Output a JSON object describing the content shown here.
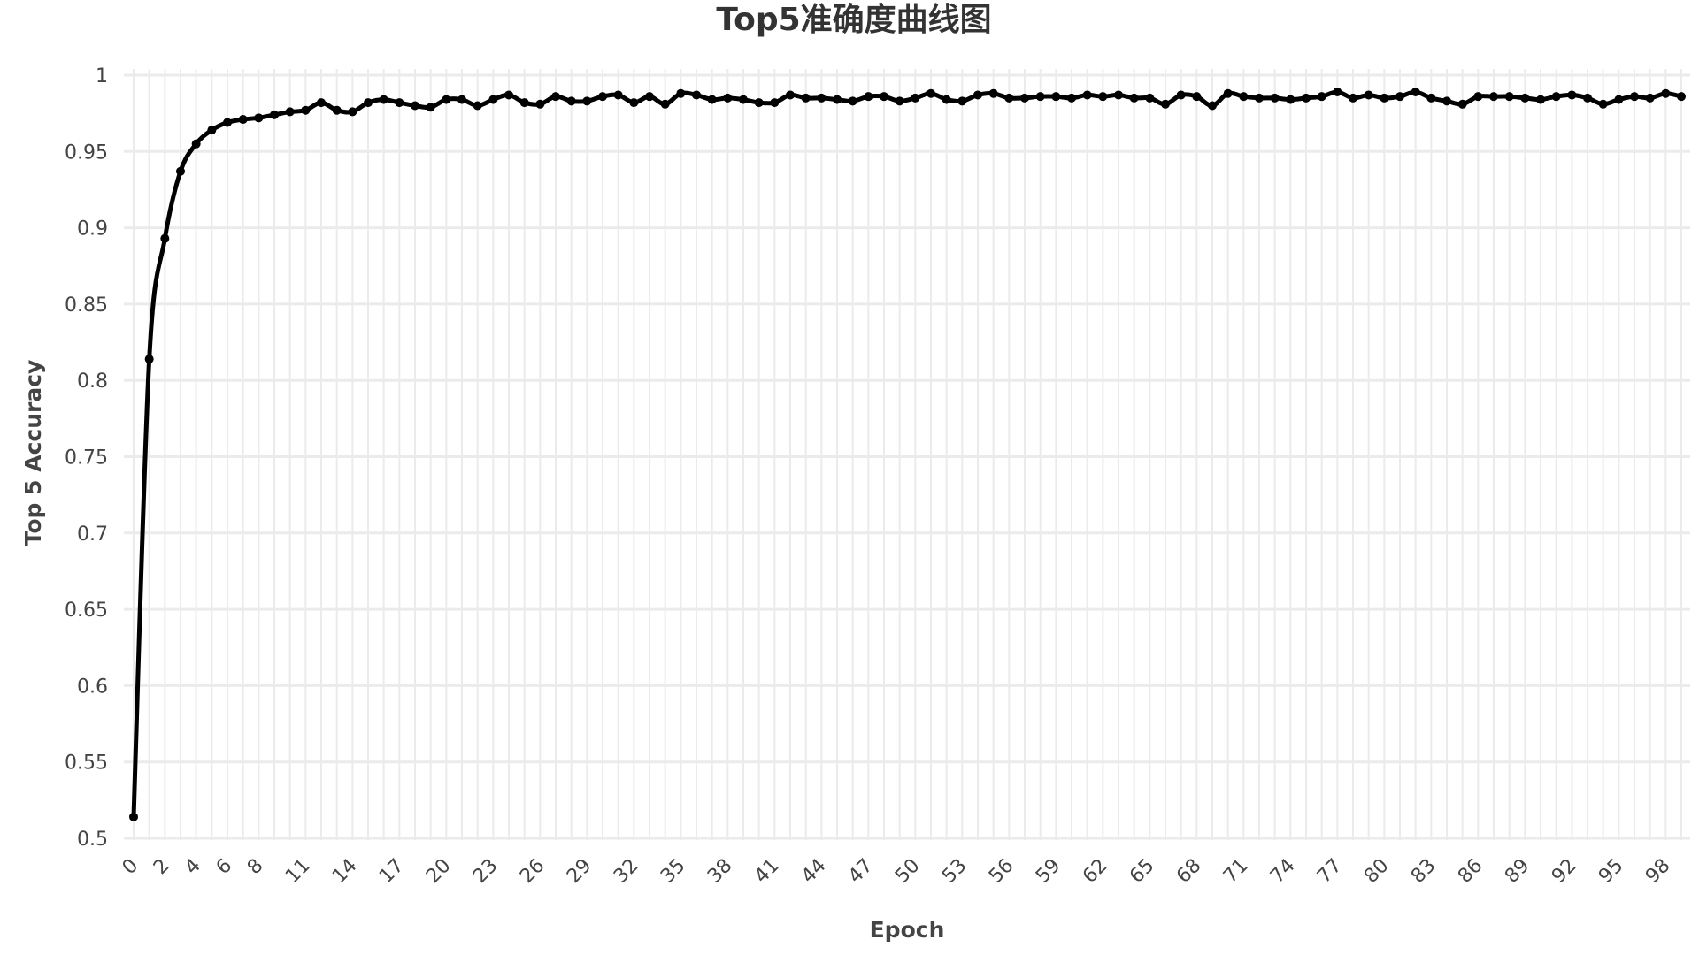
{
  "chart_data": {
    "type": "line",
    "title": "Top5准确度曲线图",
    "xlabel": "Epoch",
    "ylabel": "Top 5 Accuracy",
    "xlim": [
      0,
      99
    ],
    "ylim": [
      0.5,
      1
    ],
    "yticks": [
      0.5,
      0.55,
      0.6,
      0.65,
      0.7,
      0.75,
      0.8,
      0.85,
      0.9,
      0.95,
      1
    ],
    "ytick_labels": [
      "0.5",
      "0.55",
      "0.6",
      "0.65",
      "0.7",
      "0.75",
      "0.8",
      "0.85",
      "0.9",
      "0.95",
      "1"
    ],
    "xtick_labels": [
      {
        "x": 0,
        "label": "0"
      },
      {
        "x": 2,
        "label": "2"
      },
      {
        "x": 4,
        "label": "4"
      },
      {
        "x": 6,
        "label": "6"
      },
      {
        "x": 8,
        "label": "8"
      },
      {
        "x": 11,
        "label": "11"
      },
      {
        "x": 14,
        "label": "14"
      },
      {
        "x": 17,
        "label": "17"
      },
      {
        "x": 20,
        "label": "20"
      },
      {
        "x": 23,
        "label": "23"
      },
      {
        "x": 26,
        "label": "26"
      },
      {
        "x": 29,
        "label": "29"
      },
      {
        "x": 32,
        "label": "32"
      },
      {
        "x": 35,
        "label": "35"
      },
      {
        "x": 38,
        "label": "38"
      },
      {
        "x": 41,
        "label": "41"
      },
      {
        "x": 44,
        "label": "44"
      },
      {
        "x": 47,
        "label": "47"
      },
      {
        "x": 50,
        "label": "50"
      },
      {
        "x": 53,
        "label": "53"
      },
      {
        "x": 56,
        "label": "56"
      },
      {
        "x": 59,
        "label": "59"
      },
      {
        "x": 62,
        "label": "62"
      },
      {
        "x": 65,
        "label": "65"
      },
      {
        "x": 68,
        "label": "68"
      },
      {
        "x": 71,
        "label": "71"
      },
      {
        "x": 74,
        "label": "74"
      },
      {
        "x": 77,
        "label": "77"
      },
      {
        "x": 80,
        "label": "80"
      },
      {
        "x": 83,
        "label": "83"
      },
      {
        "x": 86,
        "label": "86"
      },
      {
        "x": 89,
        "label": "89"
      },
      {
        "x": 92,
        "label": "92"
      },
      {
        "x": 95,
        "label": "95"
      },
      {
        "x": 98,
        "label": "98"
      }
    ],
    "grid": true,
    "legend": "none",
    "series_color": "#000000",
    "series": [
      {
        "x": [
          0,
          1,
          2,
          3,
          4,
          5,
          6,
          7,
          8,
          9,
          10,
          11,
          12,
          13,
          14,
          15,
          16,
          17,
          18,
          19,
          20,
          21,
          22,
          23,
          24,
          25,
          26,
          27,
          28,
          29,
          30,
          31,
          32,
          33,
          34,
          35,
          36,
          37,
          38,
          39,
          40,
          41,
          42,
          43,
          44,
          45,
          46,
          47,
          48,
          49,
          50,
          51,
          52,
          53,
          54,
          55,
          56,
          57,
          58,
          59,
          60,
          61,
          62,
          63,
          64,
          65,
          66,
          67,
          68,
          69,
          70,
          71,
          72,
          73,
          74,
          75,
          76,
          77,
          78,
          79,
          80,
          81,
          82,
          83,
          84,
          85,
          86,
          87,
          88,
          89,
          90,
          91,
          92,
          93,
          94,
          95,
          96,
          97,
          98,
          99
        ],
        "values": [
          0.514,
          0.814,
          0.893,
          0.937,
          0.955,
          0.964,
          0.969,
          0.971,
          0.972,
          0.974,
          0.976,
          0.977,
          0.982,
          0.977,
          0.976,
          0.982,
          0.984,
          0.982,
          0.98,
          0.979,
          0.984,
          0.984,
          0.98,
          0.984,
          0.987,
          0.982,
          0.981,
          0.986,
          0.983,
          0.983,
          0.986,
          0.987,
          0.982,
          0.986,
          0.981,
          0.988,
          0.987,
          0.984,
          0.985,
          0.984,
          0.982,
          0.982,
          0.987,
          0.985,
          0.985,
          0.984,
          0.983,
          0.986,
          0.986,
          0.983,
          0.985,
          0.988,
          0.984,
          0.983,
          0.987,
          0.988,
          0.985,
          0.985,
          0.986,
          0.986,
          0.985,
          0.987,
          0.986,
          0.987,
          0.985,
          0.985,
          0.981,
          0.987,
          0.986,
          0.98,
          0.988,
          0.986,
          0.985,
          0.985,
          0.984,
          0.985,
          0.986,
          0.989,
          0.985,
          0.987,
          0.985,
          0.986,
          0.989,
          0.985,
          0.983,
          0.981,
          0.986,
          0.986,
          0.986,
          0.985,
          0.984,
          0.986,
          0.987,
          0.985,
          0.981,
          0.984,
          0.986,
          0.985,
          0.988,
          0.986
        ]
      }
    ]
  }
}
